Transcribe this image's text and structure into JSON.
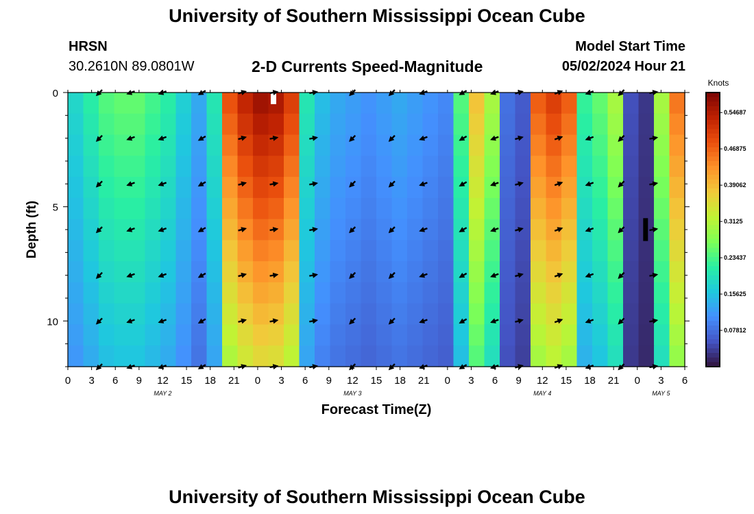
{
  "page": {
    "title_top": "University of Southern Mississippi Ocean Cube",
    "title_bottom": "University of Southern Mississippi Ocean Cube",
    "station": "HRSN",
    "coords": "30.2610N  89.0801W",
    "model_start_label": "Model Start Time",
    "model_start_value": "05/02/2024 Hour 21",
    "subtitle": "2-D Currents Speed-Magnitude"
  },
  "colors": {
    "background": "#ffffff",
    "text": "#000000",
    "arrow": "#000000",
    "colormap": [
      "#30123b",
      "#4454c4",
      "#4490fe",
      "#1fc8de",
      "#29efa2",
      "#7dff56",
      "#c1f334",
      "#f1ca3a",
      "#fe922a",
      "#ea4f0d",
      "#be2102",
      "#7a0403"
    ]
  },
  "chart_data": {
    "type": "heatmap",
    "title": "2-D Currents Speed-Magnitude",
    "xlabel": "Forecast Time(Z)",
    "ylabel": "Depth (ft)",
    "xlim": [
      0,
      78
    ],
    "ylim": [
      12,
      0
    ],
    "x_ticks": [
      0,
      3,
      6,
      9,
      12,
      15,
      18,
      21,
      24,
      27,
      30,
      33,
      36,
      39,
      42,
      45,
      48,
      51,
      54,
      57,
      60,
      63,
      66,
      69,
      72,
      75,
      78
    ],
    "x_tick_labels": [
      "0",
      "3",
      "6",
      "9",
      "12",
      "15",
      "18",
      "21",
      "0",
      "3",
      "6",
      "9",
      "12",
      "15",
      "18",
      "21",
      "0",
      "3",
      "6",
      "9",
      "12",
      "15",
      "18",
      "21",
      "0",
      "3",
      "6"
    ],
    "y_ticks": [
      0,
      5,
      10
    ],
    "y_tick_labels": [
      "0",
      "5",
      "10"
    ],
    "day_labels": [
      {
        "x": 12,
        "text": "MAY 2"
      },
      {
        "x": 36,
        "text": "MAY 3"
      },
      {
        "x": 60,
        "text": "MAY 4"
      },
      {
        "x": 75,
        "text": "MAY 5"
      }
    ],
    "colorbar": {
      "label": "Knots",
      "min": 0.0,
      "max": 0.59,
      "ticks": [
        0.07812,
        0.15625,
        0.23437,
        0.3125,
        0.39062,
        0.46875,
        0.54687
      ],
      "tick_labels": [
        "0.07812",
        "0.15625",
        "0.23437",
        "0.3125",
        "0.39062",
        "0.46875",
        "0.54687"
      ]
    },
    "speed_profile": {
      "hours": [
        0,
        2,
        4,
        6,
        8,
        10,
        12,
        14,
        16,
        18,
        20,
        22,
        24,
        26,
        28,
        30,
        32,
        34,
        36,
        38,
        40,
        42,
        44,
        46,
        48,
        50,
        52,
        54,
        56,
        58,
        60,
        62,
        64,
        66,
        68,
        70,
        72,
        74,
        76,
        78
      ],
      "knots": [
        0.18,
        0.21,
        0.24,
        0.25,
        0.25,
        0.23,
        0.21,
        0.17,
        0.13,
        0.2,
        0.48,
        0.53,
        0.56,
        0.55,
        0.5,
        0.2,
        0.15,
        0.13,
        0.12,
        0.11,
        0.12,
        0.13,
        0.12,
        0.11,
        0.1,
        0.24,
        0.38,
        0.3,
        0.08,
        0.06,
        0.47,
        0.5,
        0.47,
        0.22,
        0.25,
        0.3,
        0.05,
        0.03,
        0.3,
        0.45
      ],
      "depth_factor": [
        1.0,
        0.97,
        0.94,
        0.91,
        0.88,
        0.85,
        0.82,
        0.79,
        0.76,
        0.73,
        0.7,
        0.67,
        0.64
      ]
    },
    "vectors": {
      "hours": [
        4,
        8,
        12,
        17,
        22,
        26,
        31,
        36,
        41,
        45,
        50,
        54,
        57,
        62,
        66,
        70,
        74
      ],
      "depths": [
        0,
        2,
        4,
        6,
        8,
        10,
        12
      ],
      "directions_deg": [
        225,
        200,
        200,
        210,
        15,
        10,
        10,
        225,
        225,
        200,
        210,
        200,
        15,
        20,
        200,
        225,
        10
      ]
    },
    "white_mark": {
      "x": 26,
      "depth": 0
    },
    "black_mark": {
      "x": 73,
      "depth_from": 5.5,
      "depth_to": 6.5
    }
  }
}
